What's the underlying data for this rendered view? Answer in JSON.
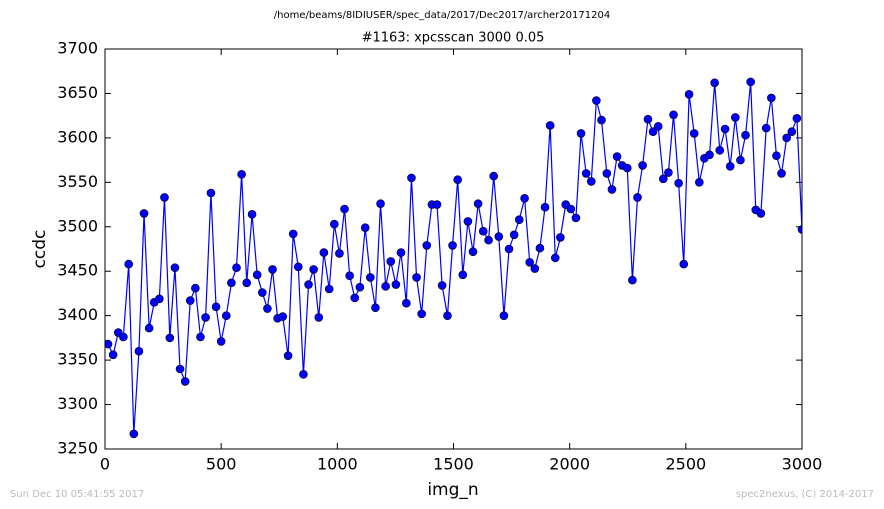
{
  "chart_data": {
    "type": "line",
    "suptitle": "/home/beams/8IDIUSER/spec_data/2017/Dec2017/archer20171204",
    "title": "#1163: xpcsscan 3000 0.05",
    "xlabel": "img_n",
    "ylabel": "ccdc",
    "footer_left": "Sun Dec 10 05:41:55 2017",
    "footer_right": "spec2nexus, (C) 2014-2017",
    "xlim": [
      0,
      3000
    ],
    "xticks": [
      0,
      500,
      1000,
      1500,
      2000,
      2500,
      3000
    ],
    "ylim": [
      3250,
      3700
    ],
    "yticks": [
      3250,
      3300,
      3350,
      3400,
      3450,
      3500,
      3550,
      3600,
      3650,
      3700
    ],
    "grid": false,
    "x": [
      13,
      35,
      57,
      79,
      102,
      124,
      146,
      168,
      190,
      212,
      234,
      256,
      279,
      301,
      323,
      345,
      367,
      389,
      411,
      433,
      456,
      478,
      500,
      522,
      544,
      566,
      588,
      610,
      633,
      655,
      677,
      699,
      721,
      743,
      765,
      788,
      810,
      832,
      854,
      876,
      898,
      920,
      942,
      965,
      987,
      1009,
      1031,
      1053,
      1075,
      1097,
      1120,
      1142,
      1164,
      1186,
      1208,
      1230,
      1252,
      1274,
      1297,
      1319,
      1341,
      1363,
      1385,
      1407,
      1429,
      1451,
      1474,
      1496,
      1518,
      1540,
      1562,
      1584,
      1606,
      1628,
      1651,
      1673,
      1695,
      1717,
      1739,
      1761,
      1783,
      1806,
      1828,
      1850,
      1872,
      1894,
      1916,
      1938,
      1960,
      1983,
      2005,
      2027,
      2049,
      2071,
      2093,
      2115,
      2137,
      2160,
      2182,
      2204,
      2226,
      2248,
      2270,
      2292,
      2314,
      2337,
      2359,
      2381,
      2403,
      2425,
      2447,
      2469,
      2491,
      2514,
      2536,
      2558,
      2580,
      2602,
      2624,
      2646,
      2669,
      2691,
      2713,
      2735,
      2757,
      2779,
      2801,
      2823,
      2846,
      2868,
      2890,
      2912,
      2934,
      2956,
      2978,
      3000
    ],
    "series": [
      {
        "color": "#0000ff",
        "values": [
          3368,
          3356,
          3381,
          3376,
          3458,
          3267,
          3360,
          3515,
          3386,
          3415,
          3419,
          3533,
          3375,
          3454,
          3340,
          3326,
          3417,
          3431,
          3376,
          3398,
          3538,
          3410,
          3371,
          3400,
          3437,
          3454,
          3559,
          3437,
          3514,
          3446,
          3426,
          3408,
          3452,
          3397,
          3399,
          3355,
          3492,
          3455,
          3334,
          3435,
          3452,
          3398,
          3471,
          3430,
          3503,
          3470,
          3520,
          3445,
          3420,
          3432,
          3499,
          3443,
          3409,
          3526,
          3433,
          3461,
          3435,
          3471,
          3414,
          3555,
          3443,
          3402,
          3479,
          3525,
          3525,
          3434,
          3400,
          3479,
          3553,
          3446,
          3506,
          3472,
          3526,
          3495,
          3485,
          3557,
          3489,
          3400,
          3475,
          3491,
          3508,
          3532,
          3460,
          3453,
          3476,
          3522,
          3614,
          3465,
          3488,
          3525,
          3520,
          3510,
          3605,
          3560,
          3551,
          3642,
          3620,
          3560,
          3542,
          3579,
          3569,
          3566,
          3440,
          3533,
          3569,
          3621,
          3607,
          3613,
          3554,
          3561,
          3626,
          3549,
          3458,
          3649,
          3605,
          3550,
          3577,
          3581,
          3662,
          3586,
          3610,
          3568,
          3623,
          3575,
          3603,
          3663,
          3519,
          3515,
          3611,
          3645,
          3580,
          3560,
          3600,
          3607,
          3622,
          3497
        ]
      }
    ]
  }
}
